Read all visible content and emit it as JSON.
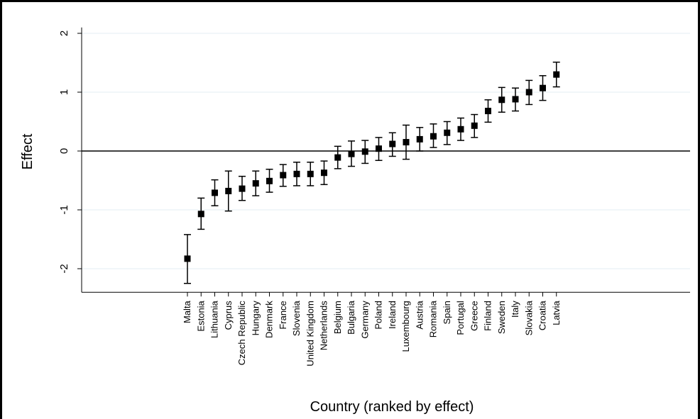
{
  "chart_data": {
    "type": "scatter",
    "xlabel": "Country (ranked by effect)",
    "ylabel": "Effect",
    "ylim": [
      -2.4,
      2.1
    ],
    "yticks": [
      -2,
      -1,
      0,
      1,
      2
    ],
    "grid": true,
    "reference_line": 0,
    "colors": {
      "marker": "#000000",
      "grid": "#e3eef3",
      "axis": "#000000"
    },
    "points": [
      {
        "country": "Malta",
        "effect": -1.83,
        "lo": -2.25,
        "hi": -1.42
      },
      {
        "country": "Estonia",
        "effect": -1.07,
        "lo": -1.33,
        "hi": -0.8
      },
      {
        "country": "Lithuania",
        "effect": -0.71,
        "lo": -0.93,
        "hi": -0.49
      },
      {
        "country": "Cyprus",
        "effect": -0.68,
        "lo": -1.02,
        "hi": -0.34
      },
      {
        "country": "Czech Republic",
        "effect": -0.64,
        "lo": -0.84,
        "hi": -0.43
      },
      {
        "country": "Hungary",
        "effect": -0.55,
        "lo": -0.76,
        "hi": -0.34
      },
      {
        "country": "Denmark",
        "effect": -0.51,
        "lo": -0.7,
        "hi": -0.31
      },
      {
        "country": "France",
        "effect": -0.41,
        "lo": -0.6,
        "hi": -0.23
      },
      {
        "country": "Slovenia",
        "effect": -0.39,
        "lo": -0.59,
        "hi": -0.19
      },
      {
        "country": "United Kingdom",
        "effect": -0.39,
        "lo": -0.59,
        "hi": -0.19
      },
      {
        "country": "Netherlands",
        "effect": -0.37,
        "lo": -0.57,
        "hi": -0.17
      },
      {
        "country": "Belgium",
        "effect": -0.11,
        "lo": -0.3,
        "hi": 0.08
      },
      {
        "country": "Bulgaria",
        "effect": -0.05,
        "lo": -0.26,
        "hi": 0.17
      },
      {
        "country": "Germany",
        "effect": -0.01,
        "lo": -0.21,
        "hi": 0.18
      },
      {
        "country": "Poland",
        "effect": 0.04,
        "lo": -0.16,
        "hi": 0.23
      },
      {
        "country": "Ireland",
        "effect": 0.12,
        "lo": -0.09,
        "hi": 0.31
      },
      {
        "country": "Luxembourg",
        "effect": 0.15,
        "lo": -0.14,
        "hi": 0.44
      },
      {
        "country": "Austria",
        "effect": 0.2,
        "lo": 0.0,
        "hi": 0.4
      },
      {
        "country": "Romania",
        "effect": 0.25,
        "lo": 0.06,
        "hi": 0.46
      },
      {
        "country": "Spain",
        "effect": 0.31,
        "lo": 0.11,
        "hi": 0.5
      },
      {
        "country": "Portugal",
        "effect": 0.37,
        "lo": 0.18,
        "hi": 0.56
      },
      {
        "country": "Greece",
        "effect": 0.43,
        "lo": 0.23,
        "hi": 0.62
      },
      {
        "country": "Finland",
        "effect": 0.68,
        "lo": 0.49,
        "hi": 0.87
      },
      {
        "country": "Sweden",
        "effect": 0.87,
        "lo": 0.66,
        "hi": 1.08
      },
      {
        "country": "Italy",
        "effect": 0.88,
        "lo": 0.68,
        "hi": 1.07
      },
      {
        "country": "Slovakia",
        "effect": 1.0,
        "lo": 0.79,
        "hi": 1.2
      },
      {
        "country": "Croatia",
        "effect": 1.07,
        "lo": 0.86,
        "hi": 1.28
      },
      {
        "country": "Latvia",
        "effect": 1.3,
        "lo": 1.09,
        "hi": 1.51
      }
    ]
  }
}
